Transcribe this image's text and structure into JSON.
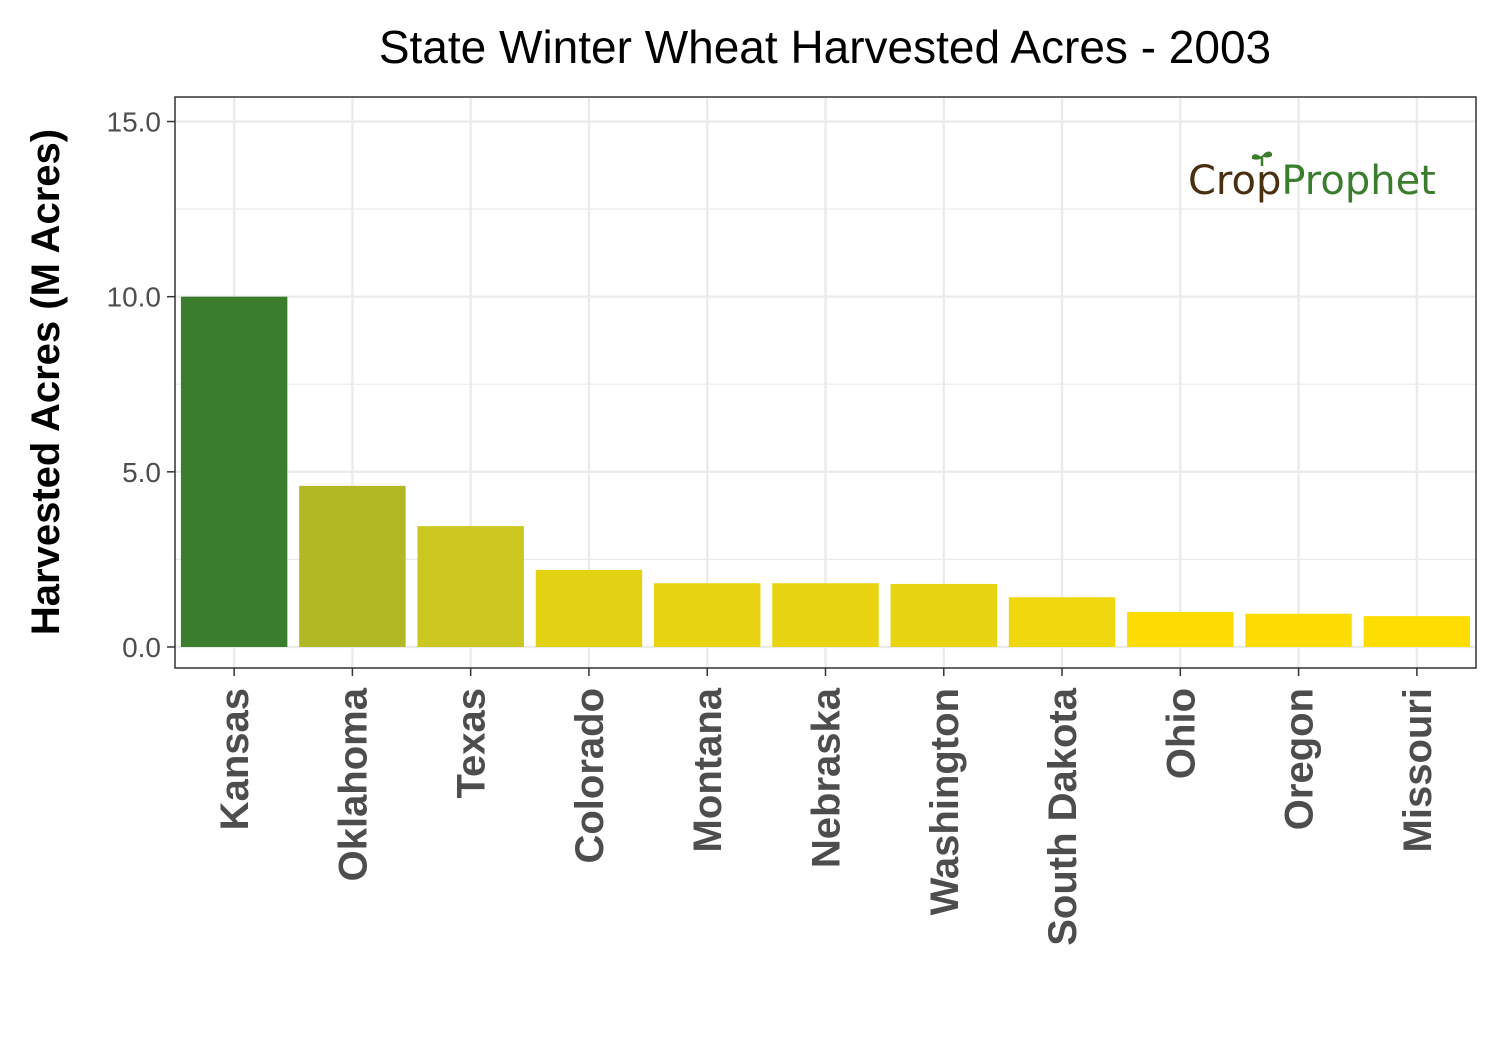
{
  "chart_data": {
    "type": "bar",
    "title": "State Winter Wheat Harvested Acres - 2003",
    "xlabel": "",
    "ylabel": "Harvested Acres (M Acres)",
    "categories": [
      "Kansas",
      "Oklahoma",
      "Texas",
      "Colorado",
      "Montana",
      "Nebraska",
      "Washington",
      "South Dakota",
      "Ohio",
      "Oregon",
      "Missouri"
    ],
    "values": [
      10.0,
      4.6,
      3.45,
      2.2,
      1.82,
      1.82,
      1.8,
      1.42,
      1.0,
      0.95,
      0.88
    ],
    "bar_colors": [
      "#3a7d2c",
      "#b2b823",
      "#cbc620",
      "#e2d213",
      "#e8d410",
      "#e8d410",
      "#e8d410",
      "#eed70d",
      "#fcdc03",
      "#fcdc03",
      "#ffdd00"
    ],
    "ylim": [
      -0.6,
      15.7
    ],
    "yticks": [
      0,
      5,
      10,
      15
    ],
    "ytick_labels": [
      "0.0",
      "5.0",
      "10.0",
      "15.0"
    ],
    "grid": true,
    "legend": "none"
  },
  "logo": {
    "crop_text": "Cr",
    "o_text": "o",
    "p_text": "p",
    "prophet_text": "Prophet",
    "crop_color": "#4a2e10",
    "prophet_color": "#3a7d2c"
  }
}
